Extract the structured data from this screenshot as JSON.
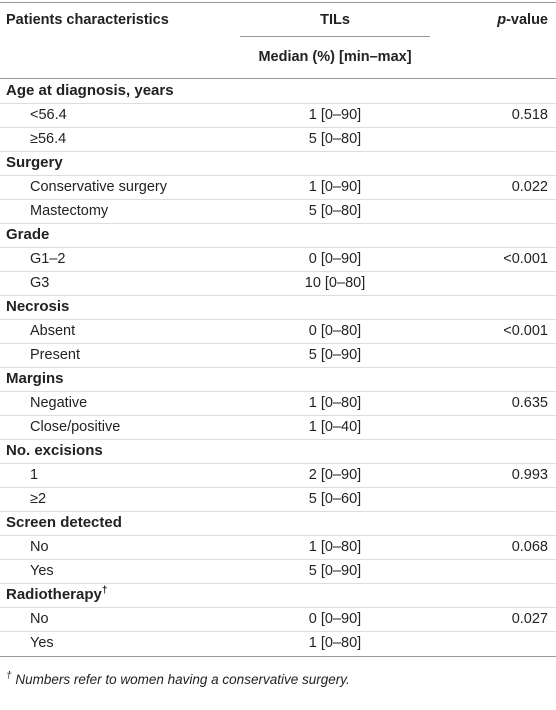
{
  "header": {
    "characteristics": "Patients characteristics",
    "tils": "TILs",
    "tils_sub": "Median (%) [min–max]",
    "p_value": {
      "italic": "p",
      "rest": "-value"
    }
  },
  "groups": [
    {
      "label": "Age at diagnosis, years",
      "rows": [
        [
          "<56.4",
          "1 [0–90]",
          "0.518"
        ],
        [
          "≥56.4",
          "5 [0–80]",
          null
        ]
      ]
    },
    {
      "label": "Surgery",
      "rows": [
        [
          "Conservative surgery",
          "1 [0–90]",
          "0.022"
        ],
        [
          "Mastectomy",
          "5 [0–80]",
          null
        ]
      ]
    },
    {
      "label": "Grade",
      "rows": [
        [
          "G1–2",
          "0 [0–90]",
          "<0.001"
        ],
        [
          "G3",
          "10 [0–80]",
          null
        ]
      ]
    },
    {
      "label": "Necrosis",
      "rows": [
        [
          "Absent",
          "0 [0–80]",
          "<0.001"
        ],
        [
          "Present",
          "5 [0–90]",
          null
        ]
      ]
    },
    {
      "label": "Margins",
      "rows": [
        [
          "Negative",
          "1 [0–80]",
          "0.635"
        ],
        [
          "Close/positive",
          "1 [0–40]",
          null
        ]
      ]
    },
    {
      "label": "No. excisions",
      "rows": [
        [
          "1",
          "2 [0–90]",
          "0.993"
        ],
        [
          "≥2",
          "5 [0–60]",
          null
        ]
      ]
    },
    {
      "label": "Screen detected",
      "rows": [
        [
          "No",
          "1 [0–80]",
          "0.068"
        ],
        [
          "Yes",
          "5 [0–90]",
          null
        ]
      ]
    },
    {
      "label": "Radiotherapy",
      "note_mark": "†",
      "rows": [
        [
          "No",
          "0 [0–90]",
          "0.027"
        ],
        [
          "Yes",
          "1 [0–80]",
          null
        ]
      ]
    }
  ],
  "footnote": {
    "mark": "†",
    "text": "Numbers refer to women having a conservative surgery."
  }
}
